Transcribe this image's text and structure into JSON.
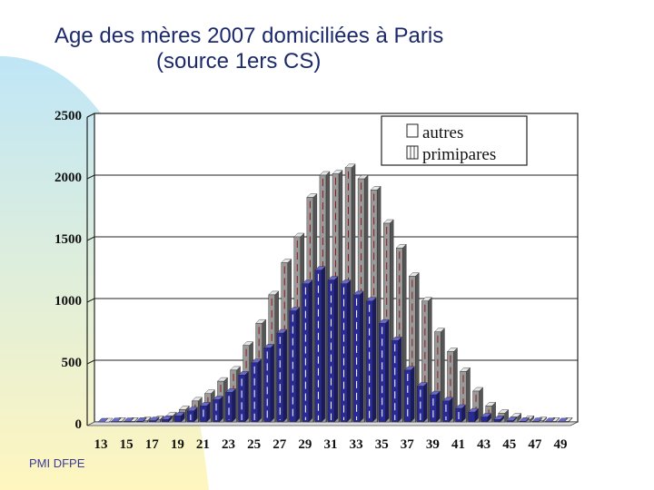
{
  "slide": {
    "title_line1": "Age des mères  2007 domiciliées à Paris",
    "title_line2": "(source 1ers CS)",
    "footer": "PMI DFPE"
  },
  "colors": {
    "title": "#1c2a6b",
    "autres_face": "#9a9a9a",
    "autres_side": "#555555",
    "autres_top": "#e6e6e6",
    "primipares_face": "#2a2a96",
    "autres_stripe": "#8b1a1a",
    "primipares_stripe": "#ffffff",
    "bg_gradient_top": "#bfe6f7",
    "bg_gradient_bottom": "#fff6bf"
  },
  "chart_data": {
    "type": "bar",
    "title": "",
    "xlabel": "",
    "ylabel": "",
    "ylim": [
      0,
      2500
    ],
    "yticks": [
      "0",
      "500",
      "1000",
      "1500",
      "2000",
      "2500"
    ],
    "xtick_labels": [
      "13",
      "15",
      "17",
      "19",
      "21",
      "23",
      "25",
      "27",
      "29",
      "31",
      "33",
      "35",
      "37",
      "39",
      "41",
      "43",
      "45",
      "47",
      "49"
    ],
    "categories": [
      13,
      14,
      15,
      16,
      17,
      18,
      19,
      20,
      21,
      22,
      23,
      24,
      25,
      26,
      27,
      28,
      29,
      30,
      31,
      32,
      33,
      34,
      35,
      36,
      37,
      38,
      39,
      40,
      41,
      42,
      43,
      44,
      45,
      46,
      47,
      48,
      49
    ],
    "series": [
      {
        "name": "autres",
        "values": [
          0,
          5,
          5,
          10,
          20,
          50,
          100,
          170,
          230,
          330,
          420,
          620,
          800,
          1030,
          1290,
          1500,
          1820,
          2000,
          2010,
          2060,
          1970,
          1880,
          1610,
          1410,
          1180,
          980,
          730,
          570,
          410,
          250,
          130,
          70,
          40,
          20,
          10,
          5,
          5
        ]
      },
      {
        "name": "primipares",
        "values": [
          0,
          2,
          3,
          5,
          10,
          20,
          50,
          90,
          130,
          180,
          240,
          380,
          480,
          600,
          720,
          900,
          1120,
          1230,
          1150,
          1120,
          1030,
          980,
          800,
          660,
          420,
          290,
          220,
          170,
          110,
          80,
          40,
          20,
          10,
          5,
          3,
          2,
          1
        ]
      }
    ],
    "legend": {
      "position": "top-right",
      "entries": [
        "autres",
        "primipares"
      ]
    },
    "grid": true
  }
}
